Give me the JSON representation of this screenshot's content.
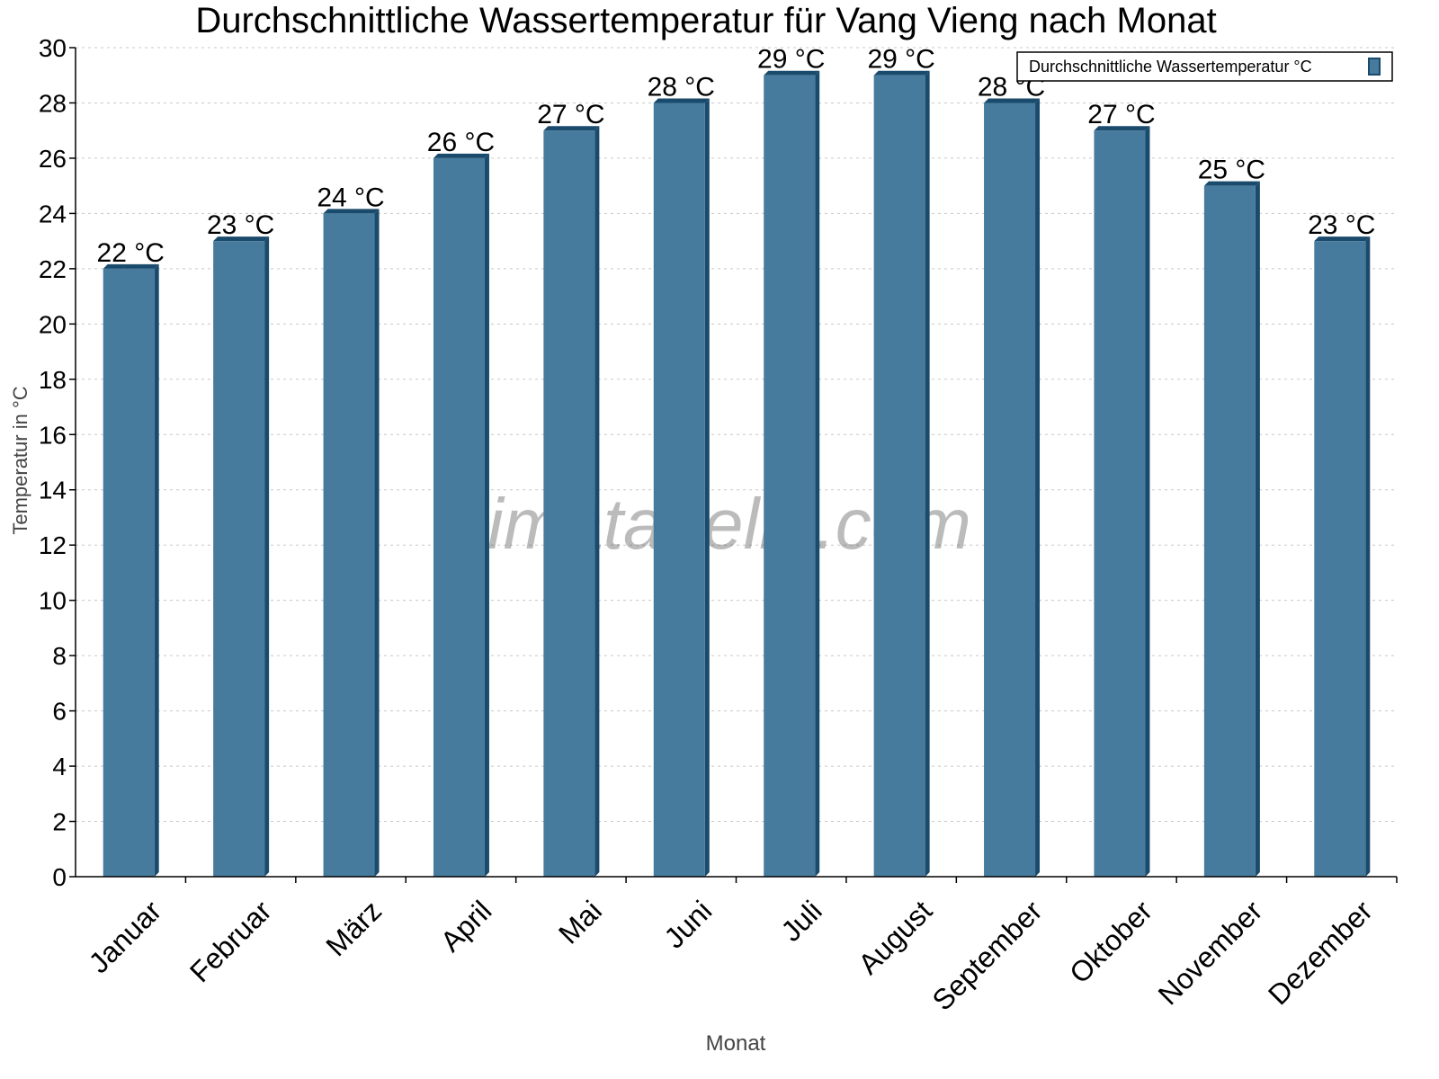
{
  "chart_data": {
    "type": "bar",
    "title": "Durchschnittliche Wassertemperatur für Vang Vieng nach Monat",
    "xlabel": "Monat",
    "ylabel": "Temperatur in °C",
    "categories": [
      "Januar",
      "Februar",
      "März",
      "April",
      "Mai",
      "Juni",
      "Juli",
      "August",
      "September",
      "Oktober",
      "November",
      "Dezember"
    ],
    "series": [
      {
        "name": "Durchschnittliche Wassertemperatur °C",
        "values": [
          22,
          23,
          24,
          26,
          27,
          28,
          29,
          29,
          28,
          27,
          25,
          23
        ],
        "color": "#467b9d",
        "edge_color": "#1a4a6c"
      }
    ],
    "data_labels": [
      "22 °C",
      "23 °C",
      "24 °C",
      "26 °C",
      "27 °C",
      "28 °C",
      "29 °C",
      "29 °C",
      "28 °C",
      "27 °C",
      "25 °C",
      "23 °C"
    ],
    "ylim": [
      0,
      30
    ],
    "yticks": [
      0,
      2,
      4,
      6,
      8,
      10,
      12,
      14,
      16,
      18,
      20,
      22,
      24,
      26,
      28,
      30
    ],
    "grid": true,
    "legend_position": "top-right",
    "watermark": "klimatabelle.com"
  }
}
